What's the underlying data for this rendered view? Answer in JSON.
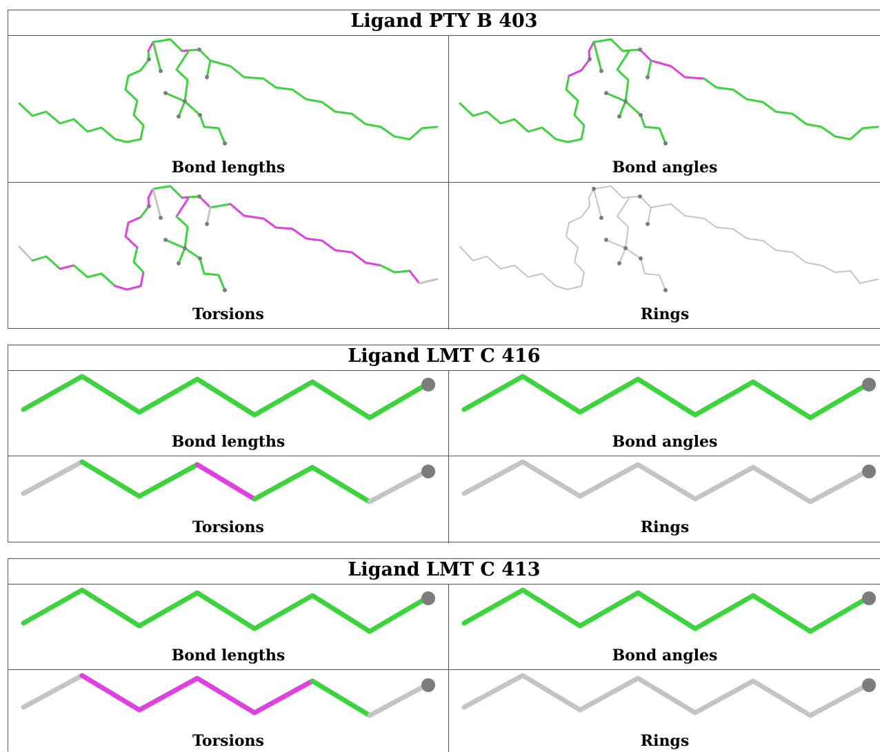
{
  "colors": {
    "ok": "#3cd33c",
    "outlier": "#e040e0",
    "neutral": "#c4c4c4",
    "atom": "#7c7c7c"
  },
  "panels": [
    {
      "title": "Ligand PTY B 403",
      "cells": [
        {
          "caption": "Bond lengths",
          "icon": "pty-molecule-bond-lengths"
        },
        {
          "caption": "Bond angles",
          "icon": "pty-molecule-bond-angles"
        },
        {
          "caption": "Torsions",
          "icon": "pty-molecule-torsions"
        },
        {
          "caption": "Rings",
          "icon": "pty-molecule-rings"
        }
      ]
    },
    {
      "title": "Ligand LMT C 416",
      "cells": [
        {
          "caption": "Bond lengths",
          "icon": "lmt-chain-bond-lengths"
        },
        {
          "caption": "Bond angles",
          "icon": "lmt-chain-bond-angles"
        },
        {
          "caption": "Torsions",
          "icon": "lmt-chain-torsions"
        },
        {
          "caption": "Rings",
          "icon": "lmt-chain-rings"
        }
      ]
    },
    {
      "title": "Ligand LMT C 413",
      "cells": [
        {
          "caption": "Bond lengths",
          "icon": "lmt-chain-bond-lengths"
        },
        {
          "caption": "Bond angles",
          "icon": "lmt-chain-bond-angles"
        },
        {
          "caption": "Torsions",
          "icon": "lmt-chain-torsions"
        },
        {
          "caption": "Rings",
          "icon": "lmt-chain-rings"
        }
      ]
    }
  ]
}
